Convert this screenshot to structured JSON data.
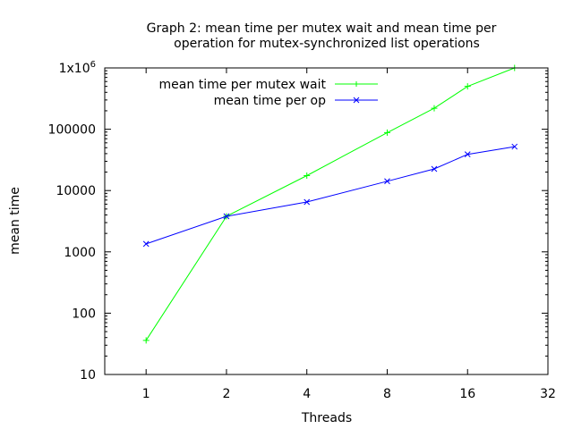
{
  "chart_data": {
    "type": "line",
    "title_lines": [
      "Graph 2: mean time per mutex wait and mean time per",
      "operation for mutex-synchronized list operations"
    ],
    "xlabel": "Threads",
    "ylabel": "mean time",
    "xscale": "log2",
    "yscale": "log10",
    "xlim": [
      0.7,
      32
    ],
    "ylim": [
      10,
      1000000
    ],
    "x_ticks": [
      1,
      2,
      4,
      8,
      16,
      32
    ],
    "x_tick_labels": [
      "1",
      "2",
      "4",
      "8",
      "16",
      "32"
    ],
    "y_ticks": [
      10,
      100,
      1000,
      10000,
      100000,
      1000000
    ],
    "y_tick_labels": [
      "10",
      "100",
      "1000",
      "10000",
      "100000",
      "1x10^6"
    ],
    "legend_position": "top-left",
    "series": [
      {
        "name": "mean time per mutex wait",
        "color": "#00ff00",
        "marker": "plus",
        "x": [
          1,
          2,
          4,
          8,
          12,
          16,
          24
        ],
        "y": [
          36,
          3800,
          17500,
          88000,
          220000,
          500000,
          1000000
        ]
      },
      {
        "name": "mean time per op",
        "color": "#0000ff",
        "marker": "cross",
        "x": [
          1,
          2,
          4,
          8,
          12,
          16,
          24
        ],
        "y": [
          1350,
          3800,
          6500,
          14200,
          22500,
          39000,
          52000
        ]
      }
    ]
  }
}
